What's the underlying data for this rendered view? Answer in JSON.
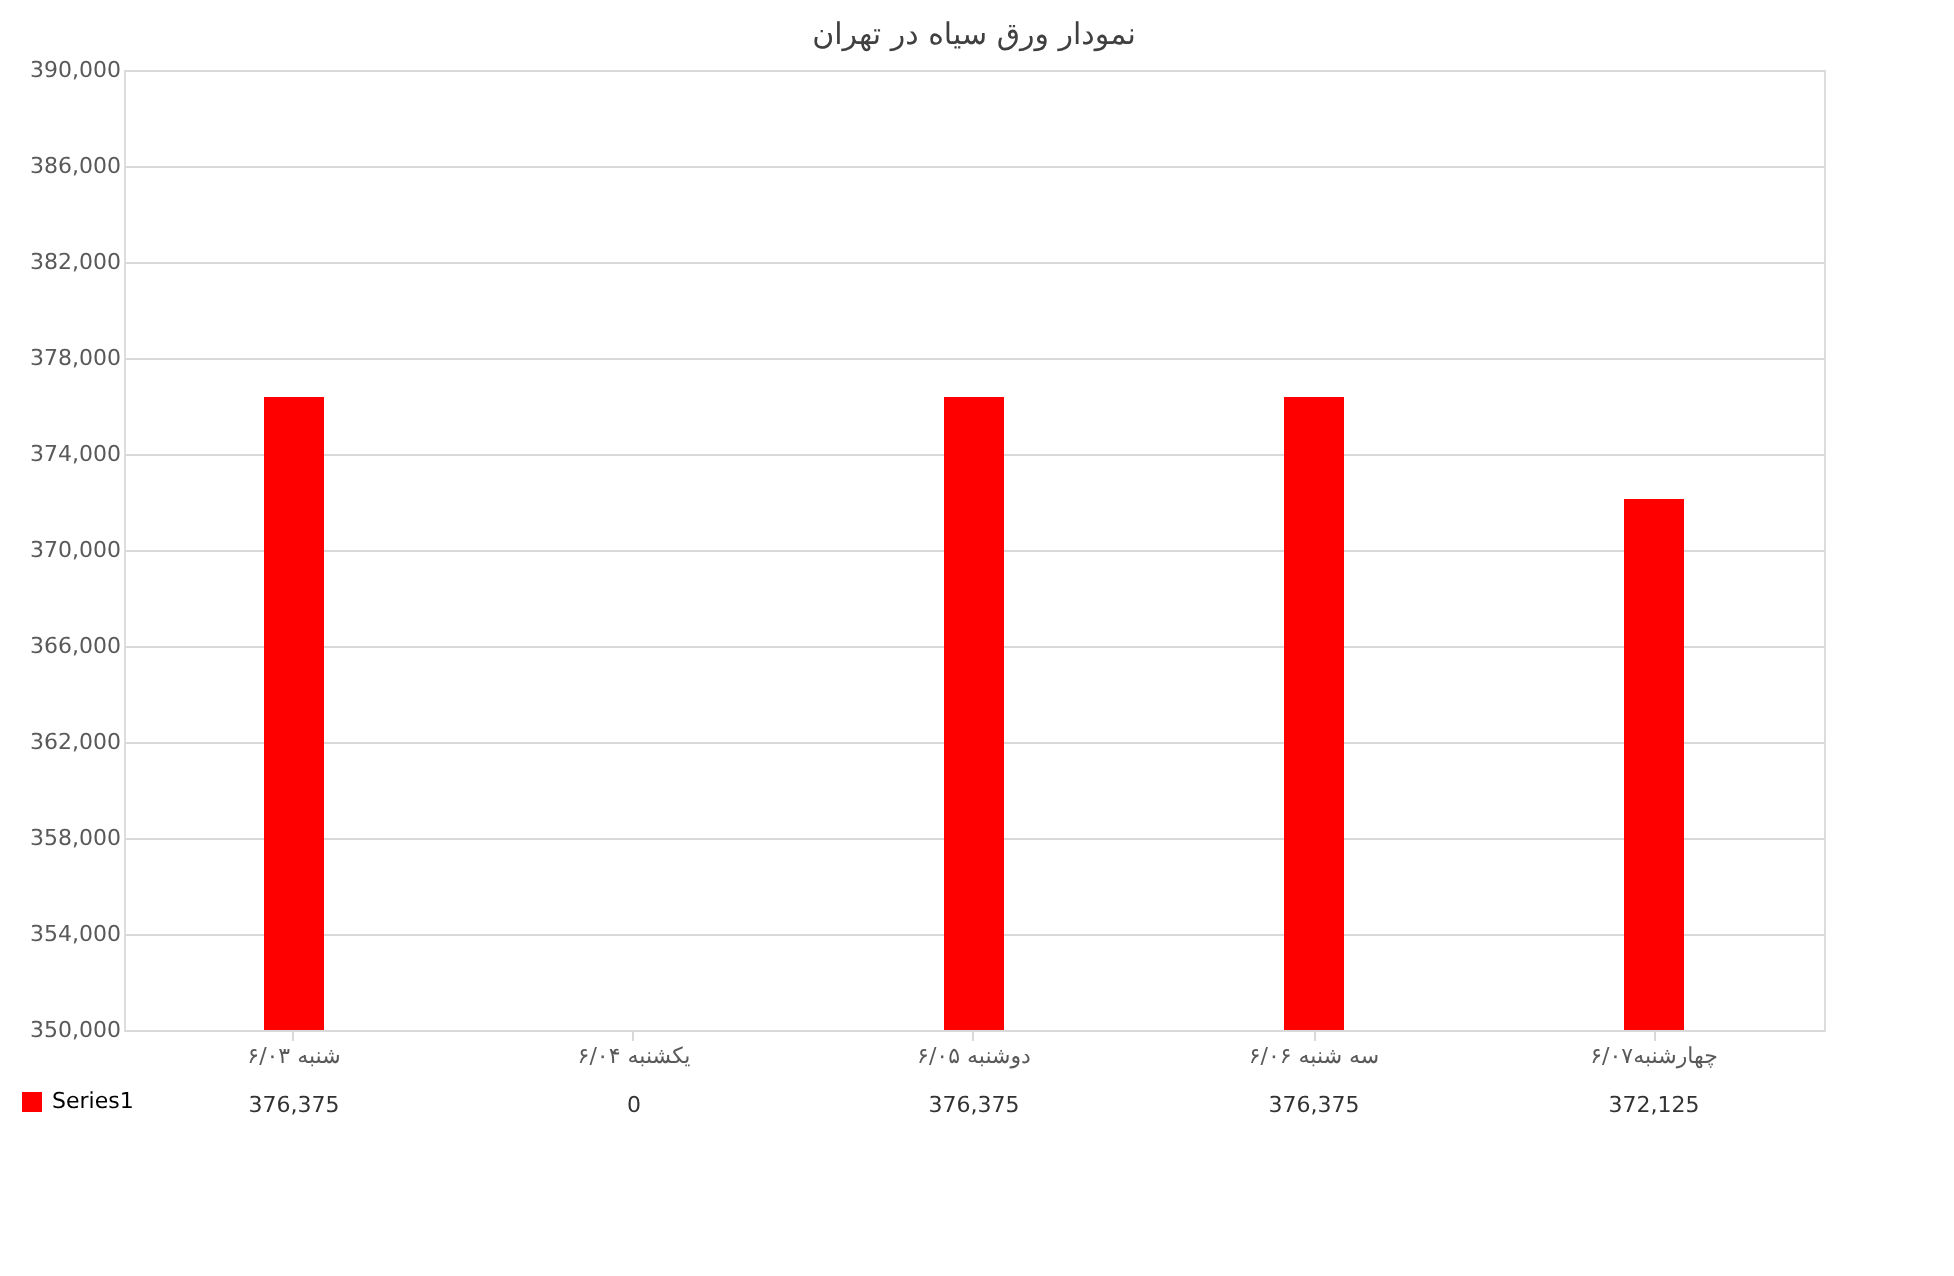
{
  "chart_data": {
    "type": "bar",
    "title": "نمودار ورق سیاه در تهران",
    "categories": [
      "شنبه ۶/۰۳",
      "یکشنبه ۶/۰۴",
      "دوشنبه ۶/۰۵",
      "سه شنبه ۶/۰۶",
      "چهارشنبه۶/۰۷"
    ],
    "series": [
      {
        "name": "Series1",
        "color": "#ff0000",
        "values": [
          376375,
          null,
          376375,
          376375,
          372125
        ],
        "value_labels": [
          "376,375",
          "0",
          "376,375",
          "376,375",
          "372,125"
        ]
      }
    ],
    "ylim": [
      350000,
      390000
    ],
    "yticks": [
      {
        "value": 350000,
        "label": "350,000"
      },
      {
        "value": 354000,
        "label": "354,000"
      },
      {
        "value": 358000,
        "label": "358,000"
      },
      {
        "value": 362000,
        "label": "362,000"
      },
      {
        "value": 366000,
        "label": "366,000"
      },
      {
        "value": 370000,
        "label": "370,000"
      },
      {
        "value": 374000,
        "label": "374,000"
      },
      {
        "value": 378000,
        "label": "378,000"
      },
      {
        "value": 382000,
        "label": "382,000"
      },
      {
        "value": 386000,
        "label": "386,000"
      },
      {
        "value": 390000,
        "label": "390,000"
      }
    ],
    "grid": "y",
    "legend": "bottom left"
  }
}
